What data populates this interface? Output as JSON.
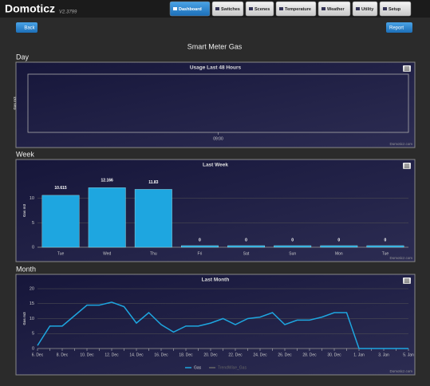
{
  "header": {
    "logo": "Domoticz",
    "version": "V2.3799",
    "nav": [
      "Dashboard",
      "Switches",
      "Scenes",
      "Temperature",
      "Weather",
      "Utility",
      "Setup"
    ],
    "active": 0
  },
  "buttons": {
    "back": "Back",
    "report": "Report"
  },
  "page_title": "Smart Meter Gas",
  "chart_data": [
    {
      "type": "empty",
      "section": "Day",
      "title": "Usage Last 48 Hours",
      "y_label": "Gas m3",
      "categories": [
        "09:00"
      ],
      "credit": "Domoticz.com"
    },
    {
      "type": "bar",
      "section": "Week",
      "title": "Last Week",
      "y_label": "Gas m3",
      "categories": [
        "Tue",
        "Wed",
        "Thu",
        "Fri",
        "Sat",
        "Sun",
        "Mon",
        "Tue"
      ],
      "values": [
        10.615,
        12.166,
        11.83,
        0,
        0,
        0,
        0,
        0
      ],
      "color": "#1ea6e0",
      "ylim": [
        0,
        15
      ],
      "yticks": [
        0,
        5,
        10
      ],
      "grid": true,
      "credit": "Domoticz.com"
    },
    {
      "type": "line",
      "section": "Month",
      "title": "Last Month",
      "y_label": "Gas m3",
      "categories": [
        "6. Dec",
        null,
        "8. Dec",
        null,
        "10. Dec",
        null,
        "12. Dec",
        null,
        "14. Dec",
        null,
        "16. Dec",
        null,
        "18. Dec",
        null,
        "20. Dec",
        null,
        "22. Dec",
        null,
        "24. Dec",
        null,
        "26. Dec",
        null,
        "28. Dec",
        null,
        "30. Dec",
        null,
        "1. Jan",
        null,
        "3. Jan",
        null,
        "5. Jan"
      ],
      "series": [
        {
          "name": "Gas",
          "color": "#1ea6e0",
          "values": [
            1,
            7.5,
            7.5,
            11,
            14.5,
            14.5,
            15.5,
            14,
            8.5,
            12,
            8,
            5.5,
            7.5,
            7.5,
            8.5,
            10,
            8,
            10,
            10.5,
            12,
            8,
            9.5,
            9.5,
            10.5,
            12,
            12,
            0,
            0,
            0,
            0,
            0
          ]
        }
      ],
      "legend_inactive": [
        "TrendWise_Gas"
      ],
      "ylim": [
        0,
        20
      ],
      "yticks": [
        0,
        5,
        10,
        15,
        20
      ],
      "grid": true,
      "credit": "Domoticz.com"
    }
  ]
}
